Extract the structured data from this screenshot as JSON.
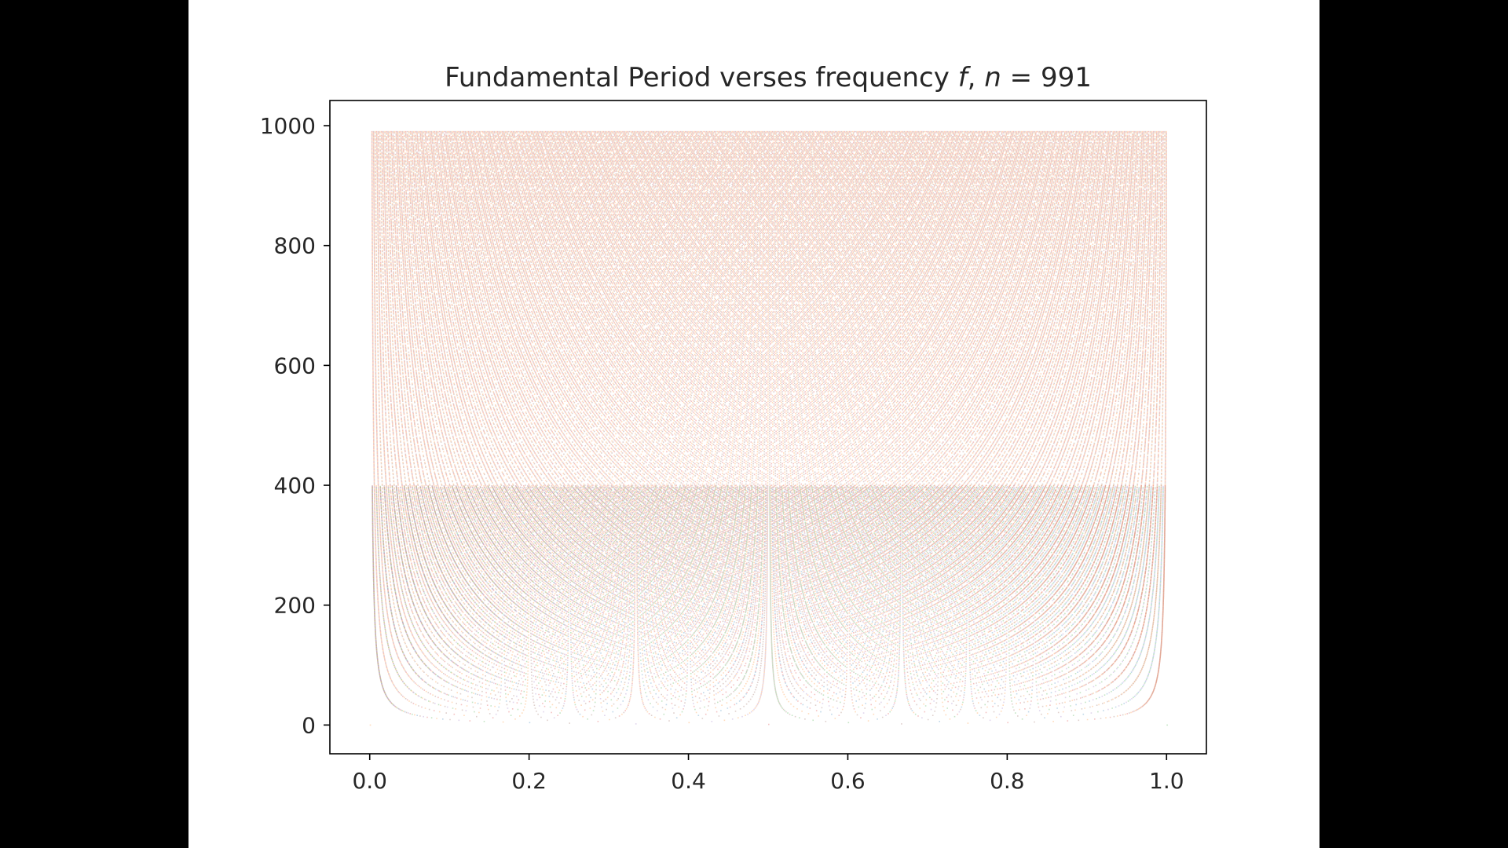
{
  "chart_data": {
    "type": "scatter",
    "title": "Fundamental Period verses frequency f, n = 991",
    "title_parts": {
      "prefix": "Fundamental Period verses frequency ",
      "f": "f",
      "comma": ", ",
      "n": "n",
      "eq": " = ",
      "value": "991"
    },
    "n": 991,
    "xlabel": "",
    "ylabel": "",
    "xlim": [
      -0.05,
      1.05
    ],
    "ylim": [
      -48,
      1042
    ],
    "xticks": [
      0.0,
      0.2,
      0.4,
      0.6,
      0.8,
      1.0
    ],
    "xtick_labels": [
      "0.0",
      "0.2",
      "0.4",
      "0.6",
      "0.8",
      "1.0"
    ],
    "yticks": [
      0,
      200,
      400,
      600,
      800,
      1000
    ],
    "ytick_labels": [
      "0",
      "200",
      "400",
      "600",
      "800",
      "1000"
    ],
    "grid": false,
    "description_of_points": "For each period p from 1 to 991 and each k, the point (k/p, p) is plotted when k/p is in lowest terms; the fundamental period of frequency f = k/p is p.",
    "colors": [
      "#1f77b4",
      "#ff7f0e",
      "#2ca02c",
      "#d62728",
      "#9467bd",
      "#8c564b"
    ],
    "marker_opacity": 0.28
  }
}
